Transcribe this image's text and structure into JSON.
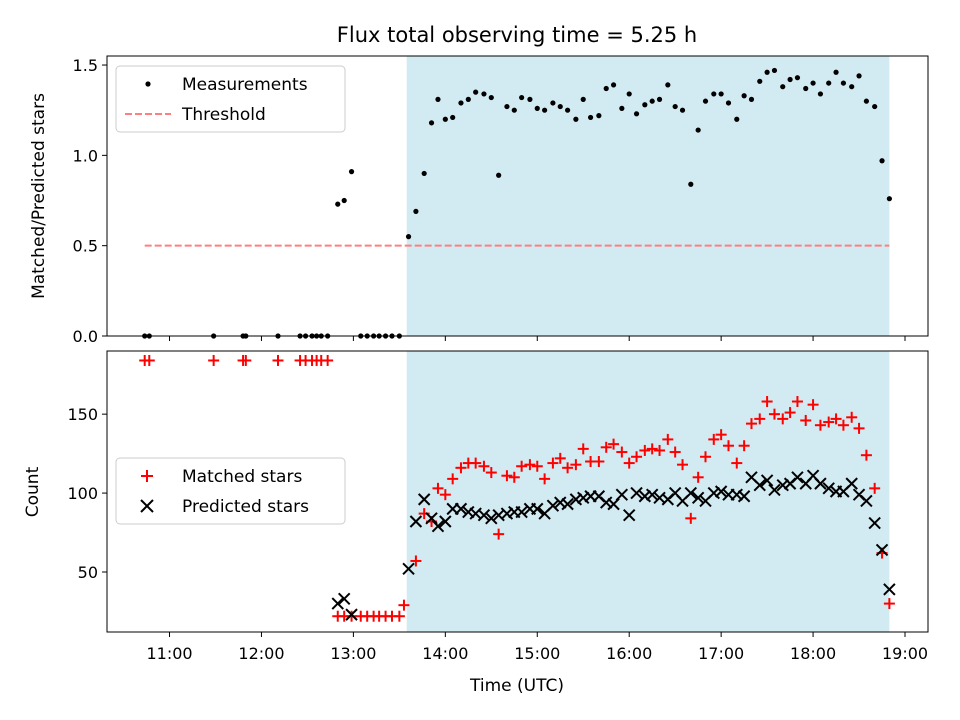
{
  "title": "Flux total observing time = 5.25 h",
  "colors": {
    "shade": "#add8e6",
    "measurement": "#000000",
    "threshold": "#ff7f7f",
    "matched": "#ff0000",
    "predicted": "#000000"
  },
  "chart_data": [
    {
      "type": "scatter",
      "ylabel": "Matched/Predicted stars",
      "xlim": [
        10.32,
        19.25
      ],
      "ylim": [
        0,
        1.55
      ],
      "yticks": [
        0.0,
        0.5,
        1.0,
        1.5
      ],
      "ytick_labels": [
        "0.0",
        "0.5",
        "1.0",
        "1.5"
      ],
      "shaded_span": [
        13.58,
        18.83
      ],
      "legend_position": "upper left",
      "legend": [
        {
          "label": "Measurements",
          "marker": "dot"
        },
        {
          "label": "Threshold",
          "marker": "dashed-line"
        }
      ],
      "series": [
        {
          "name": "Measurements",
          "marker": "dot",
          "points": [
            [
              10.73,
              0
            ],
            [
              10.78,
              0
            ],
            [
              11.48,
              0
            ],
            [
              11.8,
              0
            ],
            [
              11.83,
              0
            ],
            [
              12.18,
              0
            ],
            [
              12.42,
              0
            ],
            [
              12.48,
              0
            ],
            [
              12.55,
              0
            ],
            [
              12.6,
              0
            ],
            [
              12.65,
              0
            ],
            [
              12.72,
              0
            ],
            [
              12.83,
              0.73
            ],
            [
              12.9,
              0.75
            ],
            [
              12.98,
              0.91
            ],
            [
              13.08,
              0
            ],
            [
              13.15,
              0
            ],
            [
              13.22,
              0
            ],
            [
              13.28,
              0
            ],
            [
              13.35,
              0
            ],
            [
              13.42,
              0
            ],
            [
              13.5,
              0
            ],
            [
              13.6,
              0.55
            ],
            [
              13.68,
              0.69
            ],
            [
              13.77,
              0.9
            ],
            [
              13.85,
              1.18
            ],
            [
              13.92,
              1.31
            ],
            [
              14.0,
              1.2
            ],
            [
              14.08,
              1.21
            ],
            [
              14.17,
              1.29
            ],
            [
              14.25,
              1.31
            ],
            [
              14.33,
              1.35
            ],
            [
              14.42,
              1.34
            ],
            [
              14.5,
              1.32
            ],
            [
              14.58,
              0.89
            ],
            [
              14.67,
              1.27
            ],
            [
              14.75,
              1.25
            ],
            [
              14.83,
              1.32
            ],
            [
              14.92,
              1.31
            ],
            [
              15.0,
              1.26
            ],
            [
              15.08,
              1.25
            ],
            [
              15.17,
              1.29
            ],
            [
              15.25,
              1.27
            ],
            [
              15.33,
              1.25
            ],
            [
              15.42,
              1.2
            ],
            [
              15.5,
              1.31
            ],
            [
              15.58,
              1.21
            ],
            [
              15.67,
              1.22
            ],
            [
              15.75,
              1.37
            ],
            [
              15.83,
              1.39
            ],
            [
              15.92,
              1.26
            ],
            [
              16.0,
              1.34
            ],
            [
              16.08,
              1.23
            ],
            [
              16.17,
              1.28
            ],
            [
              16.25,
              1.3
            ],
            [
              16.33,
              1.31
            ],
            [
              16.42,
              1.39
            ],
            [
              16.5,
              1.27
            ],
            [
              16.58,
              1.25
            ],
            [
              16.67,
              0.84
            ],
            [
              16.75,
              1.14
            ],
            [
              16.83,
              1.3
            ],
            [
              16.92,
              1.34
            ],
            [
              17.0,
              1.34
            ],
            [
              17.08,
              1.29
            ],
            [
              17.17,
              1.2
            ],
            [
              17.25,
              1.33
            ],
            [
              17.33,
              1.31
            ],
            [
              17.42,
              1.41
            ],
            [
              17.5,
              1.46
            ],
            [
              17.58,
              1.47
            ],
            [
              17.67,
              1.38
            ],
            [
              17.75,
              1.42
            ],
            [
              17.83,
              1.43
            ],
            [
              17.92,
              1.37
            ],
            [
              18.0,
              1.4
            ],
            [
              18.08,
              1.34
            ],
            [
              18.17,
              1.4
            ],
            [
              18.25,
              1.46
            ],
            [
              18.33,
              1.4
            ],
            [
              18.42,
              1.38
            ],
            [
              18.5,
              1.44
            ],
            [
              18.58,
              1.3
            ],
            [
              18.67,
              1.27
            ],
            [
              18.75,
              0.97
            ],
            [
              18.83,
              0.76
            ]
          ]
        },
        {
          "name": "Threshold",
          "style": "dashed",
          "x": [
            10.73,
            18.83
          ],
          "y": [
            0.5,
            0.5
          ]
        }
      ]
    },
    {
      "type": "scatter",
      "xlabel": "Time (UTC)",
      "ylabel": "Count",
      "xlim": [
        10.32,
        19.25
      ],
      "ylim": [
        12,
        190
      ],
      "yticks": [
        50,
        100,
        150
      ],
      "ytick_labels": [
        "50",
        "100",
        "150"
      ],
      "xticks": [
        11,
        12,
        13,
        14,
        15,
        16,
        17,
        18,
        19
      ],
      "xtick_labels": [
        "11:00",
        "12:00",
        "13:00",
        "14:00",
        "15:00",
        "16:00",
        "17:00",
        "18:00",
        "19:00"
      ],
      "shaded_span": [
        13.58,
        18.83
      ],
      "legend_position": "center left",
      "legend": [
        {
          "label": "Matched stars",
          "marker": "plus"
        },
        {
          "label": "Predicted stars",
          "marker": "x"
        }
      ],
      "series": [
        {
          "name": "Matched stars",
          "marker": "plus",
          "points": [
            [
              10.73,
              184
            ],
            [
              10.78,
              184
            ],
            [
              11.48,
              184
            ],
            [
              11.8,
              184
            ],
            [
              11.83,
              184
            ],
            [
              12.18,
              184
            ],
            [
              12.42,
              184
            ],
            [
              12.48,
              184
            ],
            [
              12.55,
              184
            ],
            [
              12.6,
              184
            ],
            [
              12.65,
              184
            ],
            [
              12.72,
              184
            ],
            [
              12.83,
              22
            ],
            [
              12.9,
              22
            ],
            [
              12.98,
              22
            ],
            [
              13.08,
              22
            ],
            [
              13.15,
              22
            ],
            [
              13.22,
              22
            ],
            [
              13.28,
              22
            ],
            [
              13.35,
              22
            ],
            [
              13.42,
              22
            ],
            [
              13.5,
              22
            ],
            [
              13.55,
              29
            ],
            [
              13.68,
              57
            ],
            [
              13.77,
              87
            ],
            [
              13.85,
              82
            ],
            [
              13.92,
              103
            ],
            [
              14.0,
              99
            ],
            [
              14.08,
              109
            ],
            [
              14.17,
              116
            ],
            [
              14.25,
              119
            ],
            [
              14.33,
              119
            ],
            [
              14.42,
              117
            ],
            [
              14.5,
              113
            ],
            [
              14.58,
              74
            ],
            [
              14.67,
              111
            ],
            [
              14.75,
              110
            ],
            [
              14.83,
              117
            ],
            [
              14.92,
              118
            ],
            [
              15.0,
              117
            ],
            [
              15.08,
              109
            ],
            [
              15.17,
              119
            ],
            [
              15.25,
              122
            ],
            [
              15.33,
              116
            ],
            [
              15.42,
              118
            ],
            [
              15.5,
              128
            ],
            [
              15.58,
              120
            ],
            [
              15.67,
              120
            ],
            [
              15.75,
              129
            ],
            [
              15.83,
              131
            ],
            [
              15.92,
              126
            ],
            [
              16.0,
              119
            ],
            [
              16.08,
              123
            ],
            [
              16.17,
              127
            ],
            [
              16.25,
              128
            ],
            [
              16.33,
              127
            ],
            [
              16.42,
              134
            ],
            [
              16.5,
              126
            ],
            [
              16.58,
              118
            ],
            [
              16.67,
              84
            ],
            [
              16.75,
              110
            ],
            [
              16.83,
              123
            ],
            [
              16.92,
              134
            ],
            [
              17.0,
              137
            ],
            [
              17.08,
              130
            ],
            [
              17.17,
              119
            ],
            [
              17.25,
              130
            ],
            [
              17.33,
              144
            ],
            [
              17.42,
              147
            ],
            [
              17.5,
              158
            ],
            [
              17.58,
              150
            ],
            [
              17.67,
              147
            ],
            [
              17.75,
              151
            ],
            [
              17.83,
              158
            ],
            [
              17.92,
              146
            ],
            [
              18.0,
              156
            ],
            [
              18.08,
              143
            ],
            [
              18.17,
              145
            ],
            [
              18.25,
              147
            ],
            [
              18.33,
              143
            ],
            [
              18.42,
              148
            ],
            [
              18.5,
              141
            ],
            [
              18.58,
              124
            ],
            [
              18.67,
              103
            ],
            [
              18.75,
              62
            ],
            [
              18.83,
              30
            ]
          ]
        },
        {
          "name": "Predicted stars",
          "marker": "x",
          "points": [
            [
              12.83,
              30
            ],
            [
              12.9,
              33
            ],
            [
              12.98,
              23
            ],
            [
              13.6,
              52
            ],
            [
              13.68,
              82
            ],
            [
              13.77,
              96
            ],
            [
              13.85,
              84
            ],
            [
              13.92,
              79
            ],
            [
              14.0,
              82
            ],
            [
              14.08,
              90
            ],
            [
              14.17,
              90
            ],
            [
              14.25,
              88
            ],
            [
              14.33,
              87
            ],
            [
              14.42,
              86
            ],
            [
              14.5,
              84
            ],
            [
              14.58,
              86
            ],
            [
              14.67,
              87
            ],
            [
              14.75,
              88
            ],
            [
              14.83,
              88
            ],
            [
              14.92,
              90
            ],
            [
              15.0,
              90
            ],
            [
              15.08,
              87
            ],
            [
              15.17,
              92
            ],
            [
              15.25,
              94
            ],
            [
              15.33,
              93
            ],
            [
              15.42,
              96
            ],
            [
              15.5,
              97
            ],
            [
              15.58,
              98
            ],
            [
              15.67,
              98
            ],
            [
              15.75,
              94
            ],
            [
              15.83,
              93
            ],
            [
              15.92,
              99
            ],
            [
              16.0,
              86
            ],
            [
              16.08,
              100
            ],
            [
              16.17,
              98
            ],
            [
              16.25,
              99
            ],
            [
              16.33,
              97
            ],
            [
              16.42,
              96
            ],
            [
              16.5,
              100
            ],
            [
              16.58,
              95
            ],
            [
              16.67,
              100
            ],
            [
              16.75,
              97
            ],
            [
              16.83,
              95
            ],
            [
              16.92,
              100
            ],
            [
              17.0,
              101
            ],
            [
              17.08,
              99
            ],
            [
              17.17,
              99
            ],
            [
              17.25,
              98
            ],
            [
              17.33,
              110
            ],
            [
              17.42,
              105
            ],
            [
              17.5,
              108
            ],
            [
              17.58,
              102
            ],
            [
              17.67,
              105
            ],
            [
              17.75,
              106
            ],
            [
              17.83,
              110
            ],
            [
              17.92,
              106
            ],
            [
              18.0,
              111
            ],
            [
              18.08,
              106
            ],
            [
              18.17,
              103
            ],
            [
              18.25,
              101
            ],
            [
              18.33,
              101
            ],
            [
              18.42,
              106
            ],
            [
              18.5,
              99
            ],
            [
              18.58,
              95
            ],
            [
              18.67,
              81
            ],
            [
              18.75,
              64
            ],
            [
              18.83,
              39
            ]
          ]
        }
      ]
    }
  ]
}
